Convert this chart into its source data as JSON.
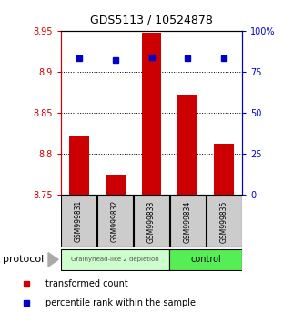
{
  "title": "GDS5113 / 10524878",
  "samples": [
    "GSM999831",
    "GSM999832",
    "GSM999833",
    "GSM999834",
    "GSM999835"
  ],
  "bar_values": [
    8.822,
    8.775,
    8.947,
    8.872,
    8.812
  ],
  "percentile_values": [
    83,
    82,
    84,
    83,
    83
  ],
  "bar_color": "#cc0000",
  "percentile_color": "#0000cc",
  "ylim_left": [
    8.75,
    8.95
  ],
  "ylim_right": [
    0,
    100
  ],
  "yticks_left": [
    8.75,
    8.8,
    8.85,
    8.9,
    8.95
  ],
  "yticks_right": [
    0,
    25,
    50,
    75,
    100
  ],
  "ytick_labels_left": [
    "8.75",
    "8.8",
    "8.85",
    "8.9",
    "8.95"
  ],
  "ytick_labels_right": [
    "0",
    "25",
    "50",
    "75",
    "100%"
  ],
  "grid_lines": [
    8.8,
    8.85,
    8.9
  ],
  "group1_samples": [
    0,
    1,
    2
  ],
  "group2_samples": [
    3,
    4
  ],
  "group1_label": "Grainyhead-like 2 depletion",
  "group2_label": "control",
  "group1_bg": "#ccffcc",
  "group2_bg": "#55ee55",
  "protocol_label": "protocol",
  "legend_bar_label": "transformed count",
  "legend_pct_label": "percentile rank within the sample",
  "tick_label_bg": "#cccccc",
  "title_fontsize": 9,
  "bar_width": 0.55
}
